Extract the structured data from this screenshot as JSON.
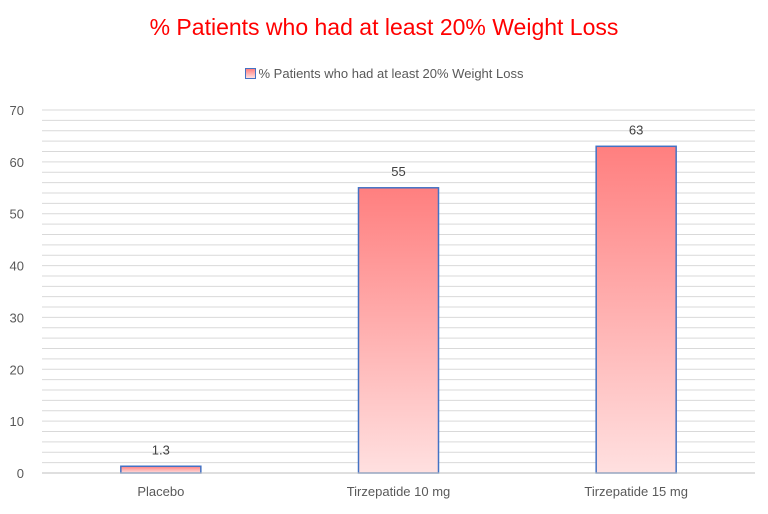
{
  "chart_data": {
    "type": "bar",
    "title": "% Patients who had at least 20% Weight Loss",
    "categories": [
      "Placebo",
      "Tirzepatide 10 mg",
      "Tirzepatide 15 mg"
    ],
    "series": [
      {
        "name": "% Patients who had at least 20% Weight Loss",
        "values": [
          1.3,
          55,
          63
        ]
      }
    ],
    "data_labels": [
      "1.3",
      "55",
      "63"
    ],
    "y_ticks": [
      "0",
      "10",
      "20",
      "30",
      "40",
      "50",
      "60",
      "70"
    ],
    "ylim": [
      0,
      70
    ],
    "xlabel": "",
    "ylabel": "",
    "legend_position": "top",
    "grid": true,
    "colors": {
      "title": "#ff0000",
      "bar_top": "#ff7f7f",
      "bar_bottom": "#ffe0e0",
      "bar_border": "#4472c4",
      "grid": "#d9d9d9"
    }
  }
}
